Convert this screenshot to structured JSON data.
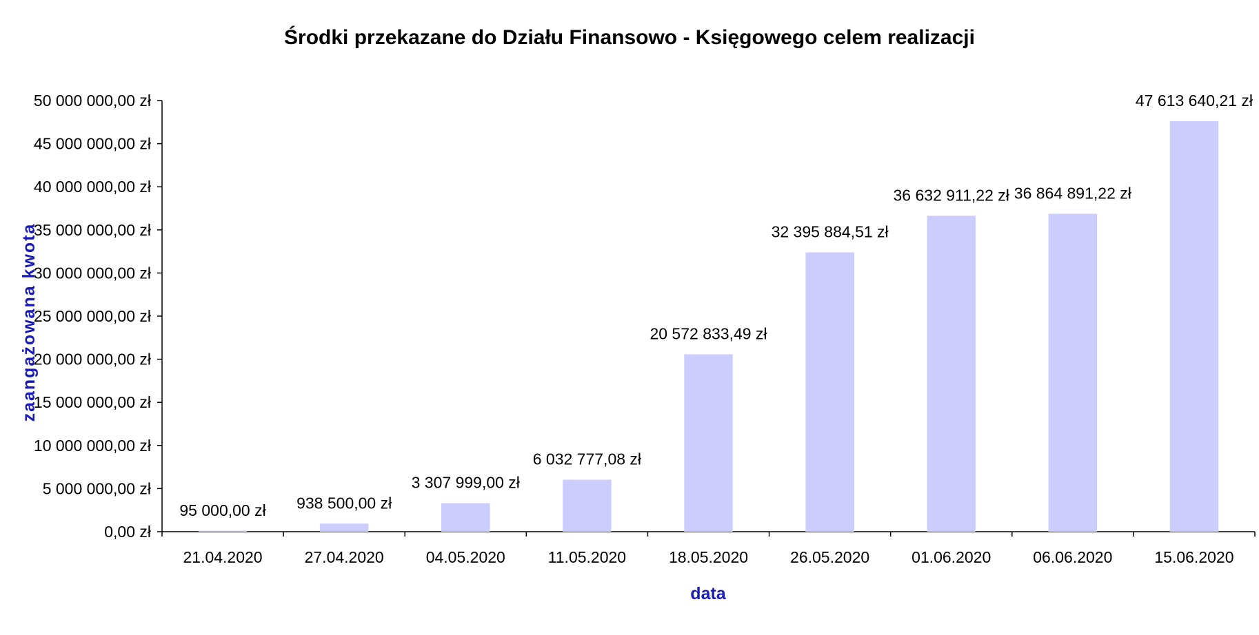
{
  "colors": {
    "bar": "#CCCCFF",
    "axis": "#000000",
    "axis_title": "#1A1AB8",
    "text": "#000000",
    "background": "#FFFFFF"
  },
  "chart_data": {
    "type": "bar",
    "title": "Środki przekazane do Działu Finansowo - Księgowego celem realizacji",
    "xlabel": "data",
    "ylabel": "zaangażowana kwota",
    "categories": [
      "21.04.2020",
      "27.04.2020",
      "04.05.2020",
      "11.05.2020",
      "18.05.2020",
      "26.05.2020",
      "01.06.2020",
      "06.06.2020",
      "15.06.2020"
    ],
    "values": [
      95000.0,
      938500.0,
      3307999.0,
      6032777.08,
      20572833.49,
      32395884.51,
      36632911.22,
      36864891.22,
      47613640.21
    ],
    "data_labels": [
      "95 000,00 zł",
      "938 500,00 zł",
      "3 307 999,00 zł",
      "6 032 777,08 zł",
      "20 572 833,49 zł",
      "32 395 884,51 zł",
      "36 632 911,22 zł",
      "36 864 891,22 zł",
      "47 613 640,21 zł"
    ],
    "ylim": [
      0,
      50000000
    ],
    "yticks": [
      0,
      5000000,
      10000000,
      15000000,
      20000000,
      25000000,
      30000000,
      35000000,
      40000000,
      45000000,
      50000000
    ],
    "ytick_labels": [
      "0,00 zł",
      "5 000 000,00 zł",
      "10 000 000,00 zł",
      "15 000 000,00 zł",
      "20 000 000,00 zł",
      "25 000 000,00 zł",
      "30 000 000,00 zł",
      "35 000 000,00 zł",
      "40 000 000,00 zł",
      "45 000 000,00 zł",
      "50 000 000,00 zł"
    ],
    "grid": false,
    "legend": "none"
  }
}
